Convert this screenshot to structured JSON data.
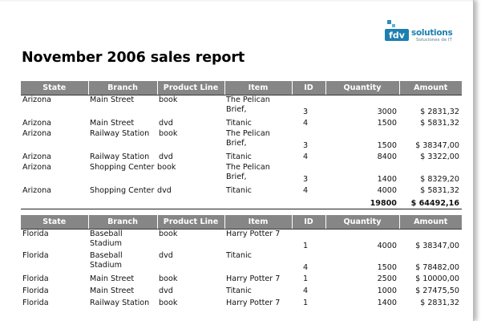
{
  "report": {
    "title": "November 2006 sales report",
    "logo": {
      "wordmark": "fdv solutions",
      "tagline": "Soluciones de IT",
      "brand_color": "#1d7fb0",
      "mark_icon": "fdv-logo-mark"
    },
    "header_color": "#868686",
    "columns": [
      "State",
      "Branch",
      "Product Line",
      "Item",
      "ID",
      "Quantity",
      "Amount"
    ]
  },
  "groups": [
    {
      "rows": [
        {
          "state": "Arizona",
          "branch": "Main Street",
          "line": "book",
          "item": "The Pelican Brief,",
          "id": "3",
          "qty": "3000",
          "amount": "$ 2831,32"
        },
        {
          "state": "Arizona",
          "branch": "Main Street",
          "line": "dvd",
          "item": "Titanic",
          "id": "4",
          "qty": "1500",
          "amount": "$ 5831,32"
        },
        {
          "state": "Arizona",
          "branch": "Railway Station",
          "line": "book",
          "item": "The Pelican Brief,",
          "id": "3",
          "qty": "1500",
          "amount": "$ 38347,00"
        },
        {
          "state": "Arizona",
          "branch": "Railway Station",
          "line": "dvd",
          "item": "Titanic",
          "id": "4",
          "qty": "8400",
          "amount": "$ 3322,00"
        },
        {
          "state": "Arizona",
          "branch": "Shopping Center",
          "line": "book",
          "item": "The Pelican Brief,",
          "id": "3",
          "qty": "1400",
          "amount": "$ 8329,20"
        },
        {
          "state": "Arizona",
          "branch": "Shopping Center",
          "line": "dvd",
          "item": "Titanic",
          "id": "4",
          "qty": "4000",
          "amount": "$ 5831,32"
        }
      ],
      "total": {
        "qty": "19800",
        "amount": "$ 64492,16"
      }
    },
    {
      "rows": [
        {
          "state": "Florida",
          "branch": "Baseball Stadium",
          "line": "book",
          "item": "Harry Potter 7",
          "id": "1",
          "qty": "4000",
          "amount": "$ 38347,00"
        },
        {
          "state": "Florida",
          "branch": "Baseball Stadium",
          "line": "dvd",
          "item": "Titanic",
          "id": "4",
          "qty": "1500",
          "amount": "$ 78482,00"
        },
        {
          "state": "Florida",
          "branch": "Main Street",
          "line": "book",
          "item": "Harry Potter 7",
          "id": "1",
          "qty": "2500",
          "amount": "$ 10000,00"
        },
        {
          "state": "Florida",
          "branch": "Main Street",
          "line": "dvd",
          "item": "Titanic",
          "id": "4",
          "qty": "1000",
          "amount": "$ 27475,50"
        },
        {
          "state": "Florida",
          "branch": "Railway Station",
          "line": "book",
          "item": "Harry Potter 7",
          "id": "1",
          "qty": "1400",
          "amount": "$ 2831,32"
        }
      ]
    }
  ]
}
